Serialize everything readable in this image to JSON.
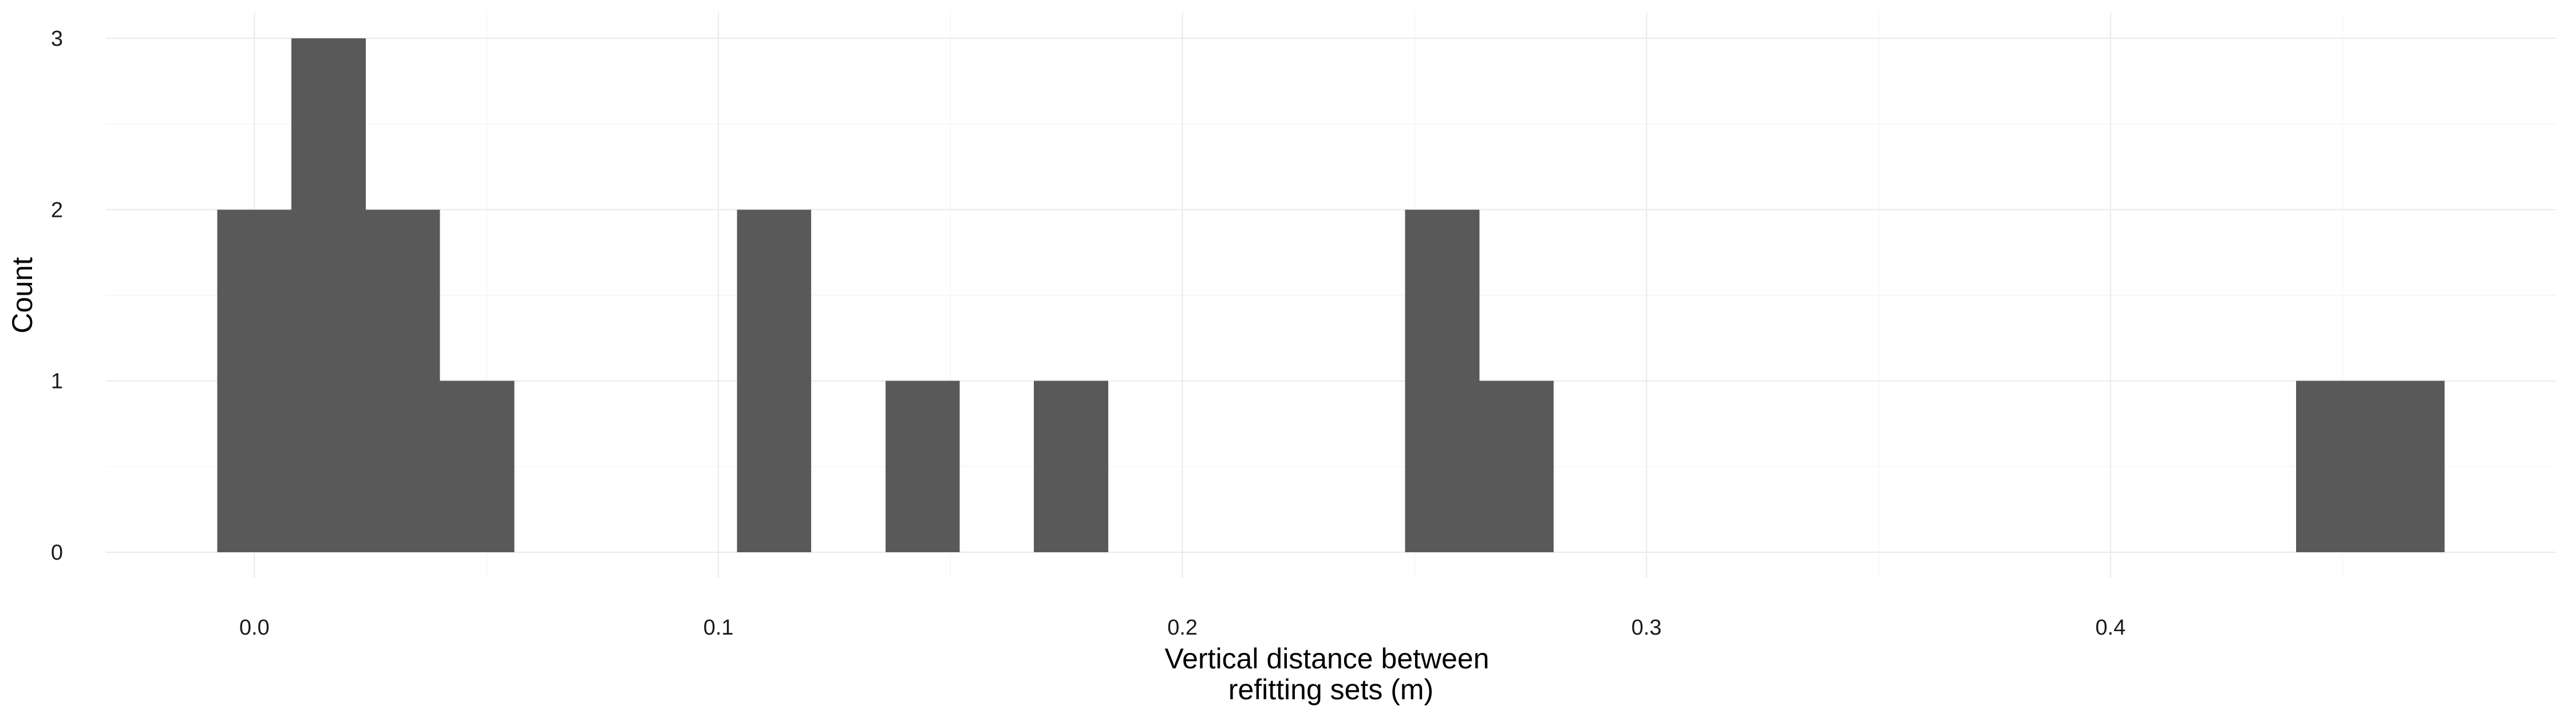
{
  "chart_data": {
    "type": "bar",
    "subtype": "histogram",
    "title": "",
    "xlabel_lines": [
      "Vertical distance between",
      "refitting sets (m)"
    ],
    "ylabel": "Count",
    "bin_width": 0.016,
    "bins": [
      {
        "x_start": -0.008,
        "x_end": 0.008,
        "count": 2
      },
      {
        "x_start": 0.008,
        "x_end": 0.024,
        "count": 3
      },
      {
        "x_start": 0.024,
        "x_end": 0.04,
        "count": 2
      },
      {
        "x_start": 0.04,
        "x_end": 0.056,
        "count": 1
      },
      {
        "x_start": 0.104,
        "x_end": 0.12,
        "count": 2
      },
      {
        "x_start": 0.136,
        "x_end": 0.152,
        "count": 1
      },
      {
        "x_start": 0.168,
        "x_end": 0.184,
        "count": 1
      },
      {
        "x_start": 0.248,
        "x_end": 0.264,
        "count": 2
      },
      {
        "x_start": 0.264,
        "x_end": 0.28,
        "count": 1
      },
      {
        "x_start": 0.44,
        "x_end": 0.456,
        "count": 1
      },
      {
        "x_start": 0.456,
        "x_end": 0.472,
        "count": 1
      }
    ],
    "xlim": [
      -0.032,
      0.496
    ],
    "ylim": [
      -0.15,
      3.15
    ],
    "x_ticks": [
      0.0,
      0.1,
      0.2,
      0.3,
      0.4
    ],
    "x_tick_labels": [
      "0.0",
      "0.1",
      "0.2",
      "0.3",
      "0.4"
    ],
    "x_minor_ticks": [
      0.05,
      0.15,
      0.25,
      0.35,
      0.45
    ],
    "y_ticks": [
      0,
      1,
      2,
      3
    ],
    "y_tick_labels": [
      "0",
      "1",
      "2",
      "3"
    ],
    "y_minor_ticks": [
      0.5,
      1.5,
      2.5
    ],
    "grid": true,
    "legend": "none",
    "bar_color": "#595959",
    "background_color": "#ffffff",
    "grid_color": "#ebebeb"
  }
}
